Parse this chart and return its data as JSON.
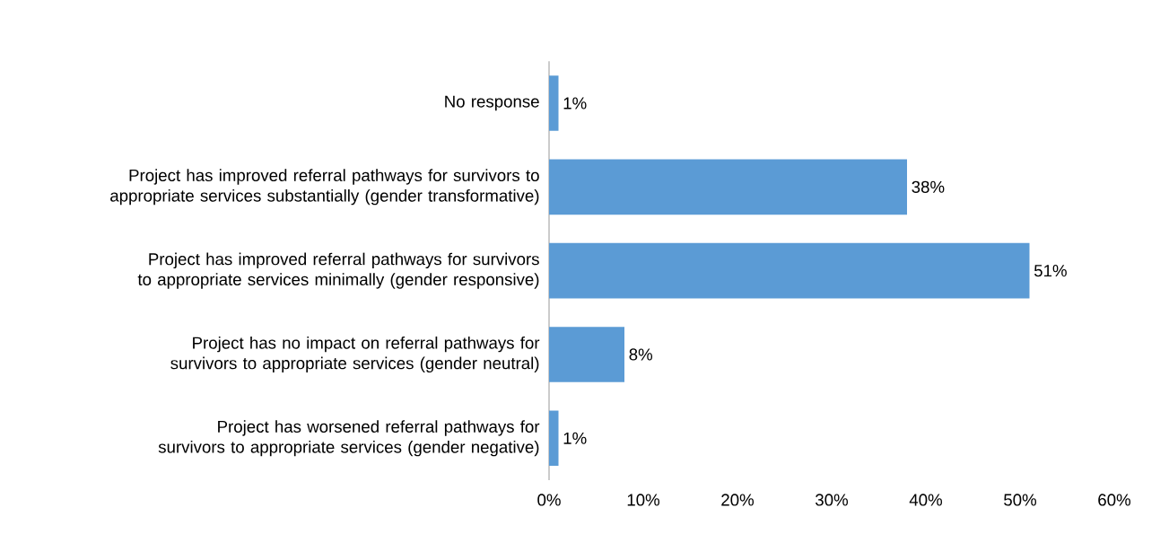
{
  "chart_data": {
    "type": "bar",
    "orientation": "horizontal",
    "categories": [
      "No response",
      "Project has improved referral pathways for survivors to appropriate services substantially (gender transformative)",
      "Project has improved referral pathways for survivors to appropriate services minimally (gender responsive)",
      "Project has no impact on referral pathways for survivors to appropriate services (gender neutral)",
      "Project has worsened referral pathways for survivors to appropriate services (gender negative)"
    ],
    "values": [
      1,
      38,
      51,
      8,
      1
    ],
    "value_labels": [
      "1%",
      "38%",
      "51%",
      "8%",
      "1%"
    ],
    "color": "#5b9bd5",
    "xlim": [
      0,
      60
    ],
    "xticks": [
      {
        "value": 0,
        "label": "0%"
      },
      {
        "value": 10,
        "label": "10%"
      },
      {
        "value": 20,
        "label": "20%"
      },
      {
        "value": 30,
        "label": "30%"
      },
      {
        "value": 40,
        "label": "40%"
      },
      {
        "value": 50,
        "label": "50%"
      },
      {
        "value": 60,
        "label": "60%"
      }
    ],
    "grid": false
  }
}
